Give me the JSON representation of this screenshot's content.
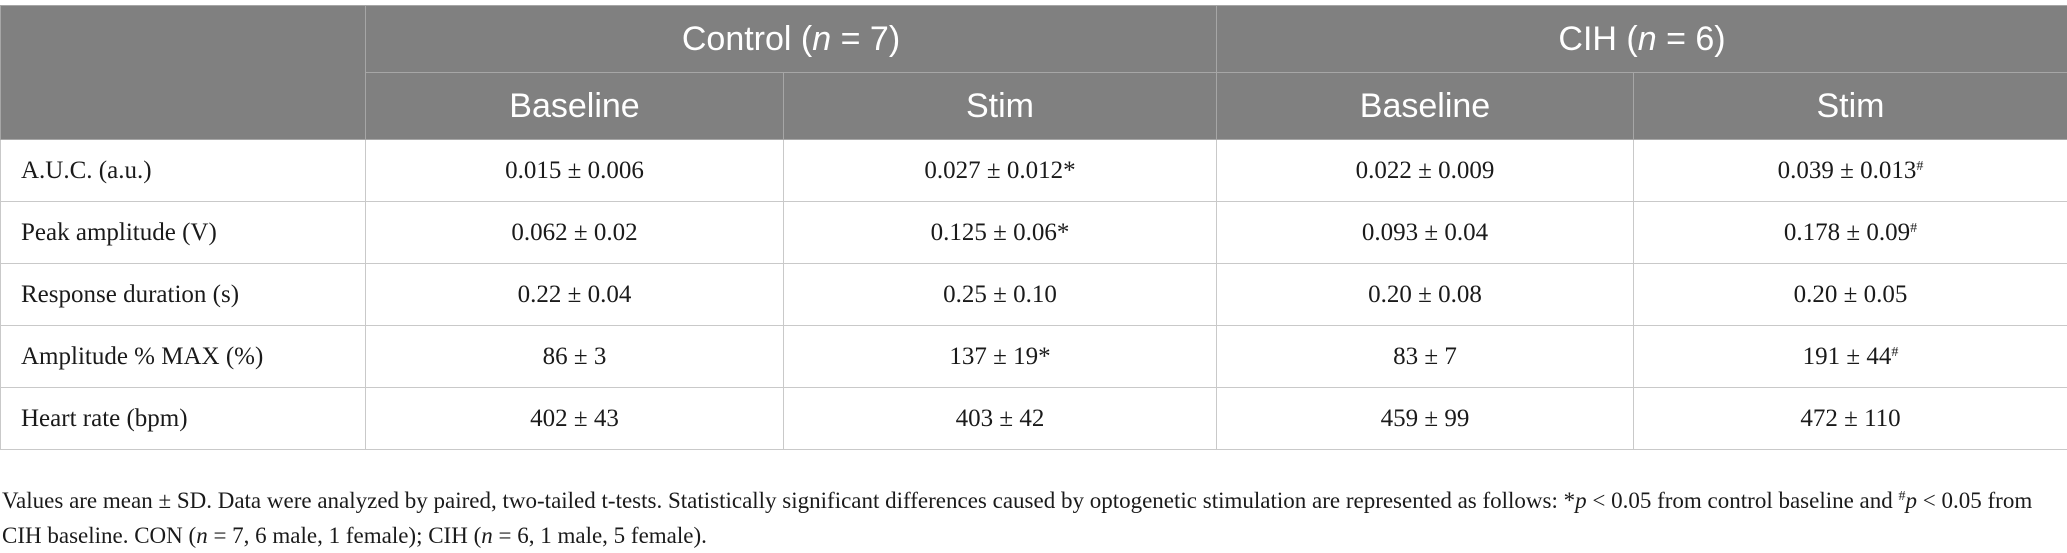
{
  "header": {
    "groups": [
      {
        "pre": "Control (",
        "n": "n",
        "post": " = 7)"
      },
      {
        "pre": "CIH (",
        "n": "n",
        "post": " = 6)"
      }
    ],
    "subcolumns": [
      "Baseline",
      "Stim",
      "Baseline",
      "Stim"
    ]
  },
  "rows": [
    {
      "label": "A.U.C. (a.u.)",
      "cells": [
        {
          "v": "0.015 ± 0.006",
          "m": ""
        },
        {
          "v": "0.027 ± 0.012*",
          "m": ""
        },
        {
          "v": "0.022 ± 0.009",
          "m": ""
        },
        {
          "v": "0.039 ± 0.013",
          "m": "#"
        }
      ]
    },
    {
      "label": "Peak amplitude (V)",
      "cells": [
        {
          "v": "0.062 ± 0.02",
          "m": ""
        },
        {
          "v": "0.125 ± 0.06*",
          "m": ""
        },
        {
          "v": "0.093 ± 0.04",
          "m": ""
        },
        {
          "v": "0.178 ± 0.09",
          "m": "#"
        }
      ]
    },
    {
      "label": "Response duration (s)",
      "cells": [
        {
          "v": "0.22 ± 0.04",
          "m": ""
        },
        {
          "v": "0.25 ± 0.10",
          "m": ""
        },
        {
          "v": "0.20 ± 0.08",
          "m": ""
        },
        {
          "v": "0.20 ± 0.05",
          "m": ""
        }
      ]
    },
    {
      "label": "Amplitude % MAX (%)",
      "cells": [
        {
          "v": "86 ± 3",
          "m": ""
        },
        {
          "v": "137 ± 19*",
          "m": ""
        },
        {
          "v": "83 ± 7",
          "m": ""
        },
        {
          "v": "191 ± 44",
          "m": "#"
        }
      ]
    },
    {
      "label": "Heart rate (bpm)",
      "cells": [
        {
          "v": "402 ± 43",
          "m": ""
        },
        {
          "v": "403 ± 42",
          "m": ""
        },
        {
          "v": "459 ± 99",
          "m": ""
        },
        {
          "v": "472 ± 110",
          "m": ""
        }
      ]
    }
  ],
  "footnote": {
    "t1": "Values are mean ± SD. Data were analyzed by paired, two-tailed t-tests. Statistically significant differences caused by optogenetic stimulation are represented as follows: *",
    "p1": "p",
    "t2": " < 0.05 from control baseline and ",
    "hash": "#",
    "p2": "p",
    "t3": " < 0.05 from CIH baseline. CON (",
    "n1": "n",
    "t4": " = 7, 6 male, 1 female); CIH (",
    "n2": "n",
    "t5": " = 6, 1 male, 5 female)."
  }
}
